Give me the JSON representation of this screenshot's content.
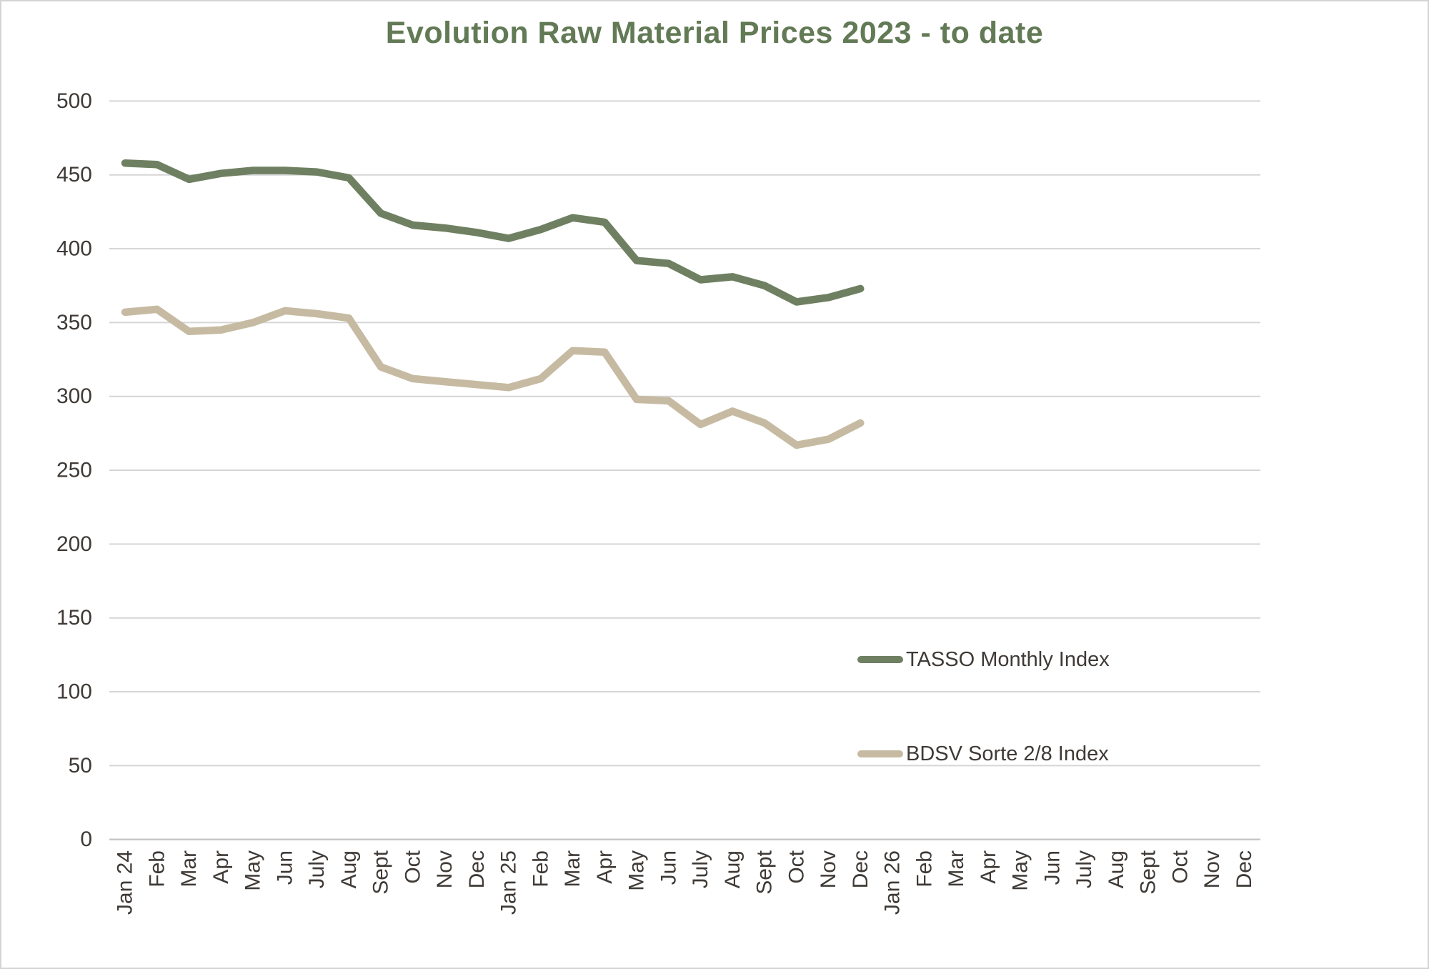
{
  "chart_data": {
    "type": "line",
    "title": "Evolution Raw Material Prices 2023 - to date",
    "categories": [
      "Jan 24",
      "Feb",
      "Mar",
      "Apr",
      "May",
      "Jun",
      "July",
      "Aug",
      "Sept",
      "Oct",
      "Nov",
      "Dec",
      "Jan 25",
      "Feb",
      "Mar",
      "Apr",
      "May",
      "Jun",
      "July",
      "Aug",
      "Sept",
      "Oct",
      "Nov",
      "Dec",
      "Jan 26",
      "Feb",
      "Mar",
      "Apr",
      "May",
      "Jun",
      "July",
      "Aug",
      "Sept",
      "Oct",
      "Nov",
      "Dec"
    ],
    "series": [
      {
        "name": "TASSO Monthly Index",
        "color": "#6E8061",
        "values": [
          458,
          457,
          447,
          451,
          453,
          453,
          452,
          448,
          424,
          416,
          414,
          411,
          407,
          413,
          421,
          418,
          392,
          390,
          379,
          381,
          375,
          364,
          367,
          373
        ]
      },
      {
        "name": "BDSV Sorte 2/8 Index",
        "color": "#C6BBA2",
        "values": [
          357,
          359,
          344,
          345,
          350,
          358,
          356,
          353,
          320,
          312,
          310,
          308,
          306,
          312,
          331,
          330,
          298,
          297,
          281,
          290,
          282,
          267,
          271,
          282
        ]
      }
    ],
    "ylabel": "",
    "xlabel": "",
    "ylim": [
      0,
      500
    ],
    "ytick_step": 50,
    "grid": true,
    "legend_position": "middle-right",
    "colors": {
      "title": "#627A55",
      "axis_text": "#3F3A36",
      "gridline": "#D6D6D6",
      "axis_line": "#C8C8C8",
      "background": "#FFFFFF"
    }
  }
}
